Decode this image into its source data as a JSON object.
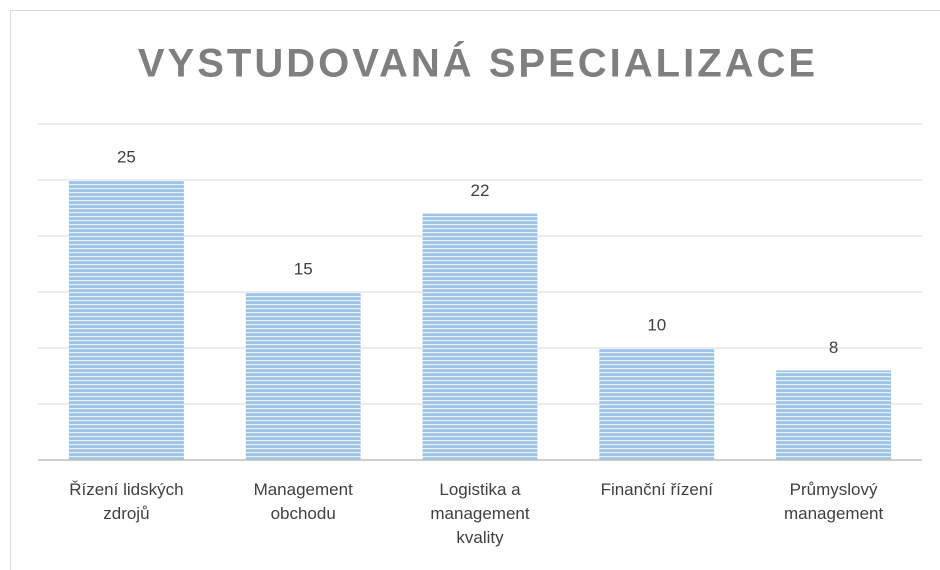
{
  "chart_data": {
    "type": "bar",
    "title": "VYSTUDOVANÁ SPECIALIZACE",
    "categories": [
      "Řízení lidských zdrojů",
      "Management obchodu",
      "Logistika a management kvality",
      "Finanční řízení",
      "Průmyslový management"
    ],
    "values": [
      25,
      15,
      22,
      10,
      8
    ],
    "color": "#9dc3e6",
    "ylim": [
      0,
      30
    ],
    "yticks": [
      0,
      5,
      10,
      15,
      20,
      25,
      30
    ],
    "grid": true
  }
}
